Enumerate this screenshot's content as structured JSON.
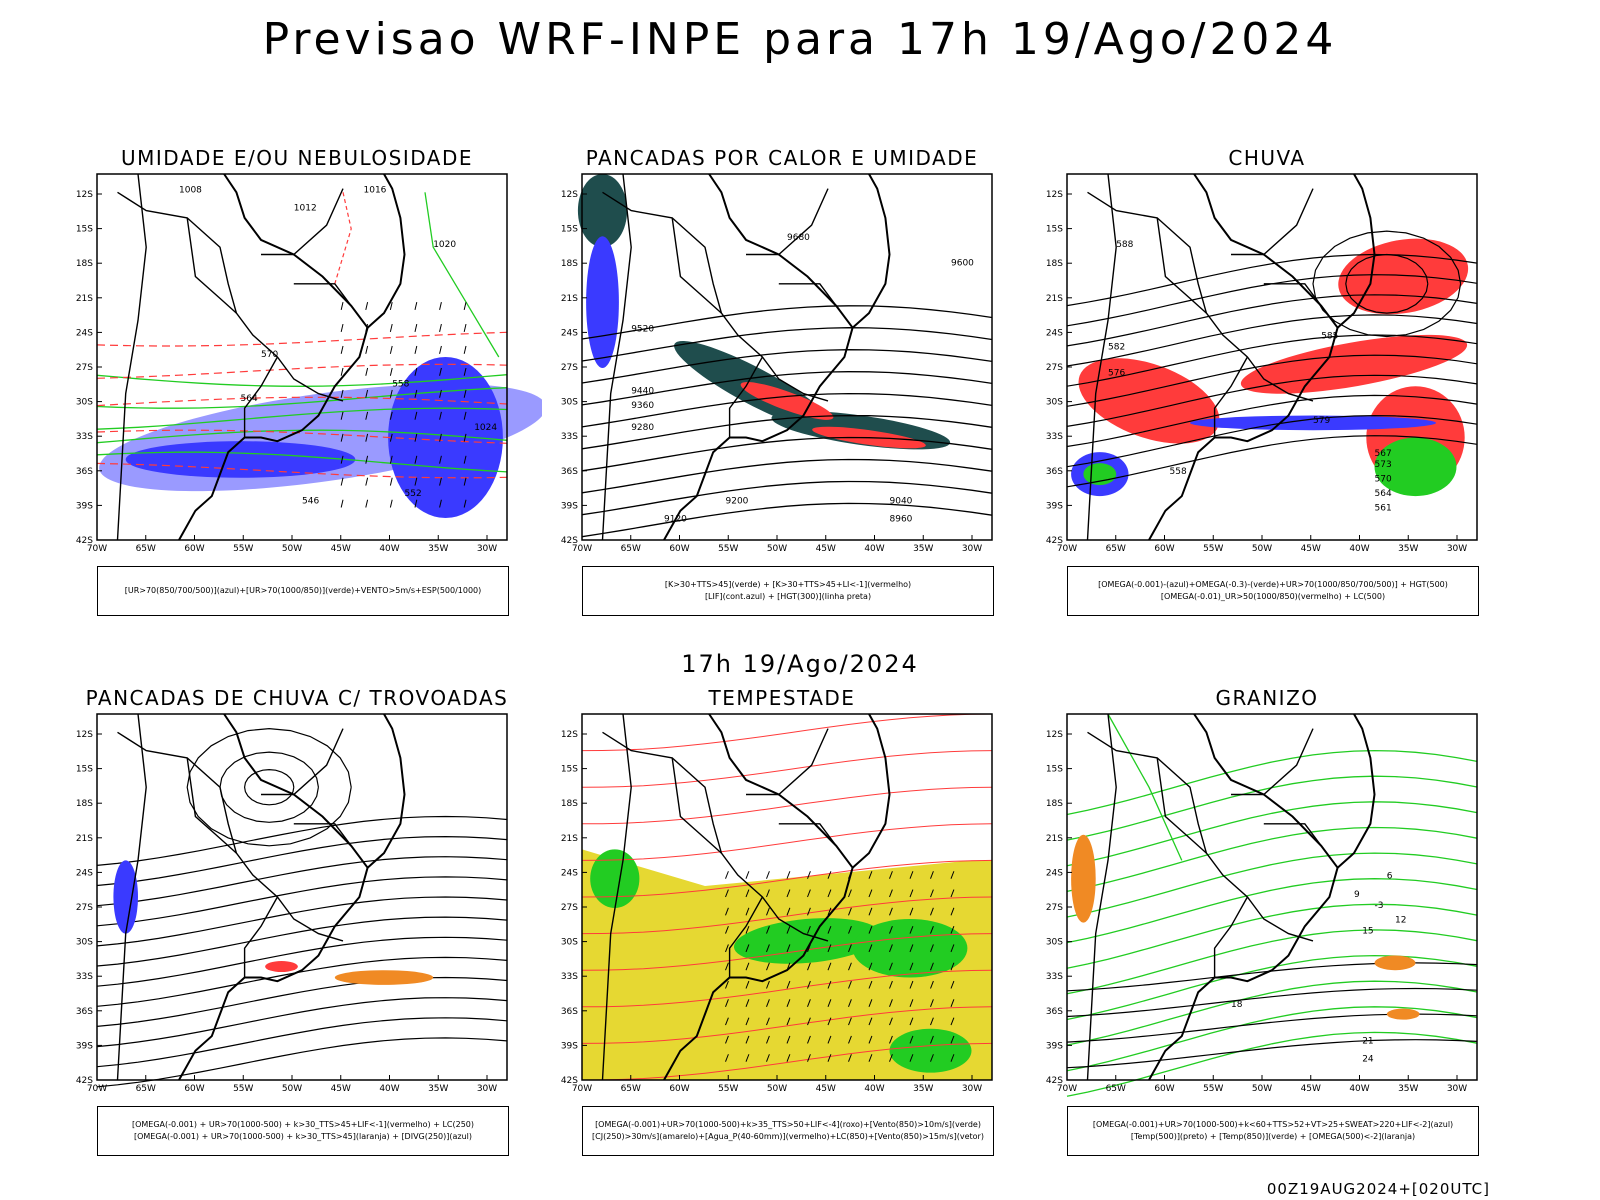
{
  "title": "Previsao WRF-INPE  para 17h 19/Ago/2024",
  "subtitle": "17h 19/Ago/2024",
  "footer": "00Z19AUG2024+[020UTC]",
  "axes": {
    "lat_ticks": [
      "12S",
      "15S",
      "18S",
      "21S",
      "24S",
      "27S",
      "30S",
      "33S",
      "36S",
      "39S",
      "42S"
    ],
    "lon_ticks": [
      "70W",
      "65W",
      "60W",
      "55W",
      "50W",
      "45W",
      "40W",
      "35W",
      "30W"
    ]
  },
  "colors": {
    "blue": "#3a3aff",
    "lightblue": "#9a9aff",
    "green": "#22cc22",
    "red": "#ff3b3b",
    "teal": "#1f4d4d",
    "yellow": "#e6d832",
    "orange": "#f08a24"
  },
  "panels": [
    {
      "title": "UMIDADE E/OU NEBULOSIDADE",
      "legend": [
        "[UR>70(850/700/500)](azul)+[UR>70(1000/850)](verde)+VENTO>5m/s+ESP(500/1000)"
      ],
      "labels": [
        "1008",
        "1012",
        "1016",
        "1020",
        "1024",
        "570",
        "564",
        "558",
        "552",
        "546"
      ]
    },
    {
      "title": "PANCADAS POR CALOR E UMIDADE",
      "legend": [
        "[K>30+TTS>45](verde) + [K>30+TTS>45+LI<-1](vermelho)",
        "[LIF](cont.azul) + [HGT(300)](linha preta)"
      ],
      "labels": [
        "9680",
        "9600",
        "9520",
        "9440",
        "9360",
        "9280",
        "9200",
        "9120",
        "9040",
        "8960"
      ]
    },
    {
      "title": "CHUVA",
      "legend": [
        "[OMEGA(-0.001)-(azul)+OMEGA(-0.3)-(verde)+UR>70(1000/850/700/500)] + HGT(500)",
        "[OMEGA(-0.01)_UR>50(1000/850)(vermelho) + LC(500)"
      ],
      "labels": [
        "588",
        "585",
        "582",
        "579",
        "576",
        "573",
        "570",
        "567",
        "564",
        "561",
        "558"
      ]
    },
    {
      "title": "PANCADAS DE CHUVA C/ TROVOADAS",
      "legend": [
        "[OMEGA(-0.001) + UR>70(1000-500) + k>30_TTS>45+LIF<-1](vermelho) + LC(250)",
        "[OMEGA(-0.001) + UR>70(1000-500) + k>30_TTS>45](laranja) + [DIVG(250)](azul)"
      ],
      "labels": []
    },
    {
      "title": "TEMPESTADE",
      "legend": [
        "[OMEGA(-0.001)+UR>70(1000-500)+k>35_TTS>50+LIF<-4](roxo)+[Vento(850)>10m/s](verde)",
        "[CJ(250)>30m/s](amarelo)+[Agua_P(40-60mm)](vermelho)+LC(850)+[Vento(850)>15m/s](vetor)"
      ],
      "labels": []
    },
    {
      "title": "GRANIZO",
      "legend": [
        "[OMEGA(-0.001)+UR>70(1000-500)+k<60+TTS>52+VT>25+SWEAT>220+LIF<-2](azul)",
        "[Temp(500)](preto) + [Temp(850)](verde) + [OMEGA(500)<-2](laranja)"
      ],
      "labels": [
        "12",
        "15",
        "18",
        "21",
        "24",
        "9",
        "6",
        "-3"
      ]
    }
  ]
}
